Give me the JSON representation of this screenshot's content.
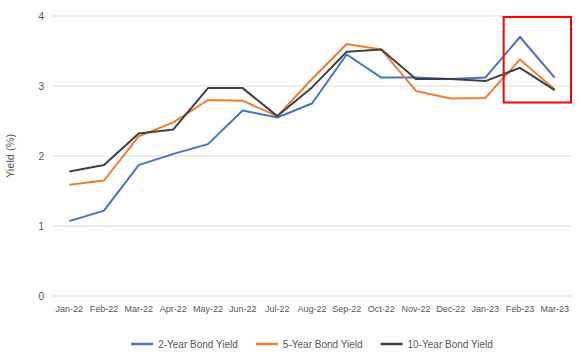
{
  "chart_data": {
    "type": "line",
    "ylabel": "Yield (%)",
    "categories": [
      "Jan-22",
      "Feb-22",
      "Mar-22",
      "Apr-22",
      "May-22",
      "Jun-22",
      "Jul-22",
      "Aug-22",
      "Sep-22",
      "Oct-22",
      "Nov-22",
      "Dec-22",
      "Jan-23",
      "Feb-23",
      "Mar-23"
    ],
    "series": [
      {
        "name": "2-Year Bond Yield",
        "color": "#4472C4",
        "values": [
          1.07,
          1.22,
          1.87,
          2.03,
          2.17,
          2.65,
          2.55,
          2.75,
          3.45,
          3.12,
          3.12,
          3.1,
          3.12,
          3.7,
          3.12
        ]
      },
      {
        "name": "5-Year Bond Yield",
        "color": "#ED7D31",
        "values": [
          1.59,
          1.65,
          2.28,
          2.48,
          2.8,
          2.79,
          2.57,
          3.1,
          3.6,
          3.52,
          2.93,
          2.82,
          2.83,
          3.38,
          2.95
        ]
      },
      {
        "name": "10-Year Bond Yield",
        "color": "#404040",
        "values": [
          1.78,
          1.87,
          2.32,
          2.38,
          2.97,
          2.97,
          2.57,
          2.98,
          3.49,
          3.52,
          3.1,
          3.1,
          3.07,
          3.26,
          2.94
        ]
      }
    ],
    "ylim": [
      0,
      4
    ],
    "yticks": [
      0,
      1,
      2,
      3,
      4
    ],
    "grid": true,
    "legend": "bottom",
    "highlight": {
      "categories": [
        "Feb-23",
        "Mar-23"
      ],
      "values": [
        2.75,
        4.0
      ],
      "color": "red"
    }
  }
}
